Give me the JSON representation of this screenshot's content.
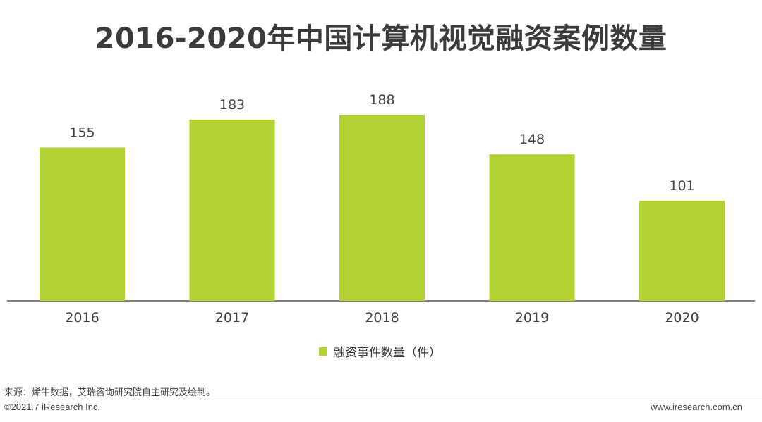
{
  "title": "2016-2020年中国计算机视觉融资案例数量",
  "chart_data": {
    "type": "bar",
    "categories": [
      "2016",
      "2017",
      "2018",
      "2019",
      "2020"
    ],
    "series": [
      {
        "name": "融资事件数量（件）",
        "values": [
          155,
          183,
          188,
          148,
          101
        ]
      }
    ],
    "ylim": [
      0,
      200
    ],
    "grid": false,
    "legend_position": "bottom",
    "color": "#b3d334"
  },
  "legend": {
    "label": "融资事件数量（件）"
  },
  "footer": {
    "source": "来源：烯牛数据，艾瑞咨询研究院自主研究及绘制。",
    "copyright": "©2021.7 iResearch Inc.",
    "website": "www.iresearch.com.cn"
  }
}
